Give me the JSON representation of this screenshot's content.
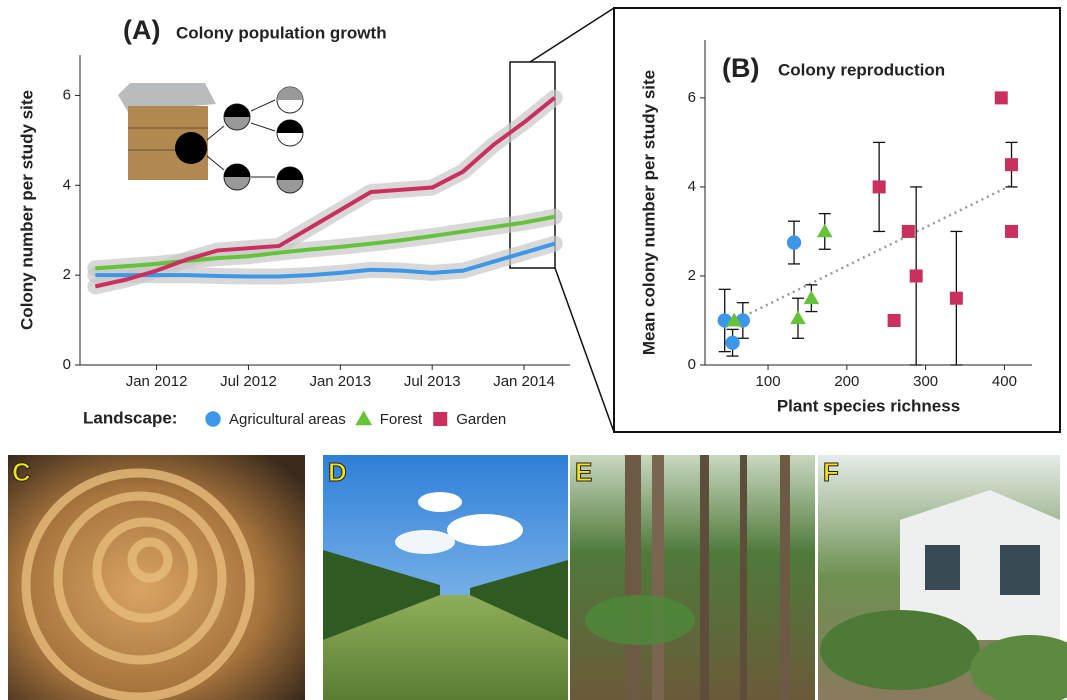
{
  "chart_data": [
    {
      "type": "line",
      "label": "(A)",
      "title": "Colony population growth",
      "ylabel": "Colony number per study site",
      "x": [
        "2011-09",
        "2011-11",
        "2012-01",
        "2012-03",
        "2012-05",
        "2012-07",
        "2012-09",
        "2012-11",
        "2013-01",
        "2013-03",
        "2013-05",
        "2013-07",
        "2013-09",
        "2013-11",
        "2014-01",
        "2014-03"
      ],
      "series": [
        {
          "name": "Agricultural areas",
          "color": "#3d97e8",
          "marker": "circle",
          "values": [
            2.0,
            2.0,
            2.0,
            2.0,
            1.98,
            1.97,
            1.97,
            2.0,
            2.05,
            2.12,
            2.1,
            2.05,
            2.1,
            2.3,
            2.5,
            2.7
          ]
        },
        {
          "name": "Forest",
          "color": "#66c23a",
          "marker": "triangle",
          "values": [
            2.15,
            2.2,
            2.25,
            2.32,
            2.38,
            2.42,
            2.5,
            2.57,
            2.63,
            2.7,
            2.78,
            2.87,
            2.97,
            3.07,
            3.17,
            3.3
          ]
        },
        {
          "name": "Garden",
          "color": "#c9305e",
          "marker": "square",
          "values": [
            1.75,
            1.9,
            2.1,
            2.35,
            2.55,
            2.6,
            2.65,
            3.05,
            3.45,
            3.85,
            3.9,
            3.95,
            4.3,
            4.9,
            5.4,
            5.95
          ]
        }
      ],
      "xlim": [
        "2011-08",
        "2014-04"
      ],
      "xticks": [
        {
          "value": "2012-01",
          "label": "Jan 2012"
        },
        {
          "value": "2012-07",
          "label": "Jul 2012"
        },
        {
          "value": "2013-01",
          "label": "Jan 2013"
        },
        {
          "value": "2013-07",
          "label": "Jul 2013"
        },
        {
          "value": "2014-01",
          "label": "Jan 2014"
        }
      ],
      "ylim": [
        0,
        6.9
      ],
      "yticks": [
        0,
        2,
        4,
        6
      ],
      "legend_title": "Landscape:",
      "legend": "bottom"
    },
    {
      "type": "scatter",
      "label": "(B)",
      "title": "Colony reproduction",
      "xlabel": "Plant species richness",
      "ylabel": "Mean colony number per study site",
      "xlim": [
        20,
        435
      ],
      "ylim": [
        0,
        7.3
      ],
      "xticks": [
        100,
        200,
        300,
        400
      ],
      "yticks": [
        0,
        2,
        4,
        6
      ],
      "series": [
        {
          "color": "#3d97e8",
          "marker": "circle",
          "x": [
            45,
            55,
            68,
            133
          ],
          "values": [
            1.0,
            0.5,
            1.0,
            2.75
          ],
          "errors": [
            0.7,
            0.3,
            0.4,
            0.48
          ]
        },
        {
          "color": "#66c23a",
          "marker": "triangle",
          "x": [
            57,
            138,
            155,
            172
          ],
          "values": [
            1.0,
            1.05,
            1.5,
            3.0
          ],
          "errors": [
            null,
            0.45,
            0.3,
            0.4
          ]
        },
        {
          "color": "#c9305e",
          "marker": "square",
          "x": [
            241,
            278,
            260,
            288,
            339,
            396,
            409,
            409
          ],
          "values": [
            4.0,
            3.0,
            1.0,
            2.0,
            1.5,
            6.0,
            4.5,
            3.0
          ],
          "errors": [
            1.0,
            null,
            null,
            2.0,
            1.5,
            null,
            0.5,
            null
          ]
        }
      ],
      "trendline": {
        "x": [
          70,
          410
        ],
        "values": [
          1.1,
          4.05
        ],
        "color": "#999999"
      }
    }
  ],
  "photos": [
    {
      "label": "C"
    },
    {
      "label": "D"
    },
    {
      "label": "E"
    },
    {
      "label": "F"
    }
  ]
}
